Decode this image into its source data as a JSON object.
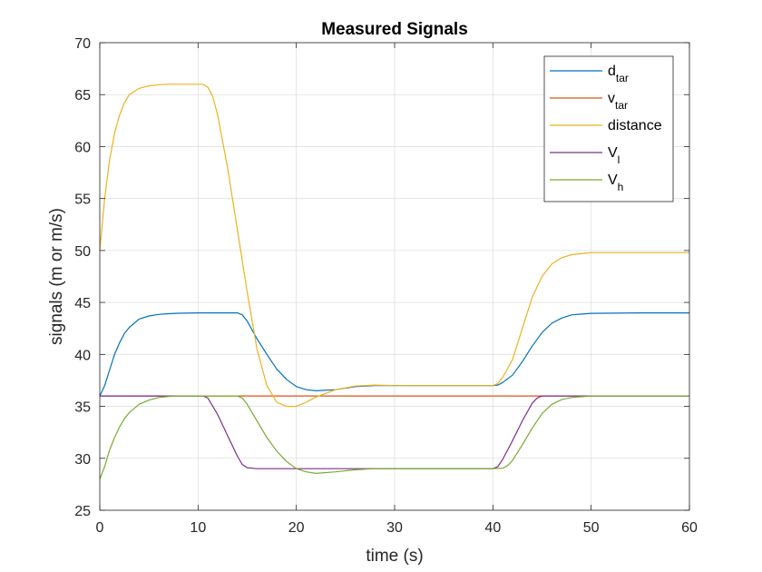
{
  "chart_data": {
    "type": "line",
    "title": "Measured Signals",
    "xlabel": "time (s)",
    "ylabel": "signals (m or m/s)",
    "xlim": [
      0,
      60
    ],
    "ylim": [
      25,
      70
    ],
    "xticks": [
      0,
      10,
      20,
      30,
      40,
      50,
      60
    ],
    "yticks": [
      25,
      30,
      35,
      40,
      45,
      50,
      55,
      60,
      65,
      70
    ],
    "grid": true,
    "legend_position": "top-right",
    "series": [
      {
        "name": "d_tar",
        "label_main": "d",
        "label_sub": "tar",
        "color": "#0072BD",
        "x": [
          0,
          0.5,
          1,
          1.5,
          2,
          2.5,
          3,
          3.5,
          4,
          5,
          6,
          7,
          8,
          10,
          12,
          14,
          14.5,
          15,
          16,
          17,
          18,
          19,
          20,
          21,
          22,
          24,
          26,
          28,
          30,
          35,
          40,
          40.5,
          41,
          42,
          43,
          44,
          45,
          46,
          47,
          48,
          50,
          55,
          60
        ],
        "y": [
          36,
          37,
          38.5,
          40,
          41.1,
          42,
          42.6,
          43,
          43.4,
          43.7,
          43.85,
          43.92,
          43.96,
          44,
          44,
          44,
          43.8,
          43.2,
          41.5,
          40,
          38.6,
          37.6,
          36.9,
          36.6,
          36.5,
          36.6,
          36.9,
          37,
          37,
          37,
          37,
          37.05,
          37.3,
          38,
          39.3,
          40.8,
          42.1,
          43,
          43.5,
          43.8,
          43.95,
          44,
          44
        ]
      },
      {
        "name": "v_tar",
        "label_main": "v",
        "label_sub": "tar",
        "color": "#D95319",
        "x": [
          0,
          60
        ],
        "y": [
          36,
          36
        ]
      },
      {
        "name": "distance",
        "label_main": "distance",
        "label_sub": "",
        "color": "#EDB120",
        "x": [
          0,
          0.5,
          1,
          1.5,
          2,
          2.5,
          3,
          4,
          5,
          6,
          7,
          8,
          9,
          10,
          10.5,
          11,
          11.5,
          12,
          13,
          14,
          15,
          16,
          17,
          18,
          19,
          20,
          21,
          22,
          24,
          26,
          28,
          30,
          35,
          40,
          40.5,
          41,
          42,
          43,
          44,
          45,
          46,
          47,
          48,
          50,
          55,
          60
        ],
        "y": [
          50,
          55,
          58.7,
          61.3,
          63,
          64.2,
          65,
          65.6,
          65.85,
          65.95,
          66,
          66,
          66,
          66,
          66,
          65.7,
          64.8,
          63,
          58,
          52,
          46,
          40.5,
          37,
          35.4,
          35,
          35,
          35.4,
          35.9,
          36.6,
          36.95,
          37.05,
          37,
          37,
          37,
          37.2,
          37.8,
          39.5,
          42.5,
          45.5,
          47.5,
          48.7,
          49.3,
          49.6,
          49.8,
          49.8,
          49.8
        ]
      },
      {
        "name": "V_l",
        "label_main": "V",
        "label_sub": "l",
        "color": "#7E2F8E",
        "x": [
          0,
          10,
          10.5,
          11,
          12,
          13,
          14,
          14.5,
          15,
          16,
          20,
          30,
          40,
          40.5,
          41,
          42,
          43,
          44,
          44.5,
          45,
          46,
          50,
          60
        ],
        "y": [
          36,
          36,
          36,
          35.8,
          34.2,
          32.2,
          30.2,
          29.4,
          29.1,
          29,
          29,
          29,
          29,
          29.2,
          29.9,
          31.7,
          33.6,
          35.3,
          35.8,
          36,
          36,
          36,
          36
        ]
      },
      {
        "name": "V_h",
        "label_main": "V",
        "label_sub": "h",
        "color": "#77AC30",
        "x": [
          0,
          0.5,
          1,
          1.5,
          2,
          2.5,
          3,
          4,
          5,
          6,
          7,
          8,
          10,
          14,
          14.5,
          15,
          16,
          17,
          18,
          19,
          20,
          21,
          22,
          24,
          26,
          28,
          30,
          35,
          40,
          41,
          41.5,
          42,
          43,
          44,
          45,
          46,
          47,
          48,
          50,
          55,
          60
        ],
        "y": [
          28,
          29.2,
          30.8,
          32,
          33,
          33.8,
          34.4,
          35.2,
          35.6,
          35.85,
          35.95,
          36,
          36,
          36,
          35.8,
          35.2,
          33.6,
          32,
          30.7,
          29.7,
          29,
          28.7,
          28.55,
          28.7,
          28.9,
          29,
          29,
          29,
          29,
          29.05,
          29.3,
          29.8,
          31.3,
          32.9,
          34.3,
          35.2,
          35.65,
          35.85,
          36,
          36,
          36
        ]
      }
    ]
  }
}
